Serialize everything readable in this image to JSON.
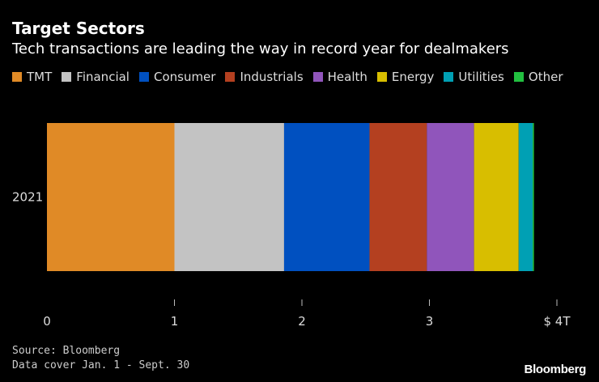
{
  "chart_data": {
    "type": "bar",
    "orientation": "horizontal",
    "stacked": true,
    "title": "Target Sectors",
    "subtitle": "Tech transactions are leading the way in record year for dealmakers",
    "categories": [
      "2021"
    ],
    "series": [
      {
        "name": "TMT",
        "values": [
          1.0
        ],
        "color": "#e08a26"
      },
      {
        "name": "Financial",
        "values": [
          0.86
        ],
        "color": "#c3c3c3"
      },
      {
        "name": "Consumer",
        "values": [
          0.67
        ],
        "color": "#0050c0"
      },
      {
        "name": "Industrials",
        "values": [
          0.45
        ],
        "color": "#b44020"
      },
      {
        "name": "Health",
        "values": [
          0.37
        ],
        "color": "#9055bb"
      },
      {
        "name": "Energy",
        "values": [
          0.35
        ],
        "color": "#d8be00"
      },
      {
        "name": "Utilities",
        "values": [
          0.11
        ],
        "color": "#00a0b4"
      },
      {
        "name": "Other",
        "values": [
          0.01
        ],
        "color": "#22c040"
      }
    ],
    "xlim": [
      0,
      4
    ],
    "xticks": [
      0,
      1,
      2,
      3,
      4
    ],
    "xtick_labels": [
      "0",
      "1",
      "2",
      "3",
      "$ 4T"
    ],
    "grid": false,
    "legend_placement": "top"
  },
  "footer": {
    "source": "Source: Bloomberg",
    "note": "Data cover Jan. 1 - Sept. 30",
    "logo": "Bloomberg"
  }
}
